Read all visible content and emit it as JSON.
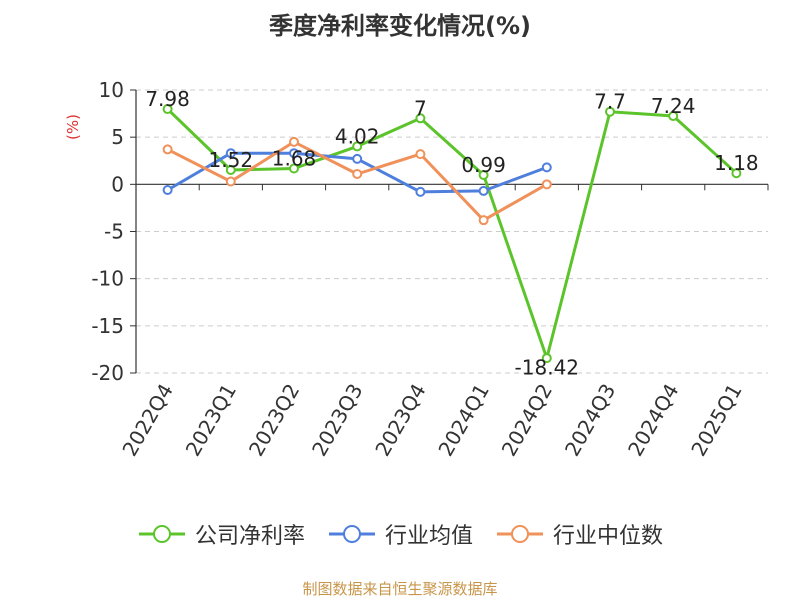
{
  "chart_data": {
    "type": "line",
    "title": "季度净利率变化情况(%)",
    "ylabel": "(%)",
    "xlabel": "",
    "categories": [
      "2022Q4",
      "2023Q1",
      "2023Q2",
      "2023Q3",
      "2023Q4",
      "2024Q1",
      "2024Q2",
      "2024Q3",
      "2024Q4",
      "2025Q1"
    ],
    "ylim": [
      -20,
      10
    ],
    "yticks": [
      10,
      5,
      0,
      -5,
      -10,
      -15,
      -20
    ],
    "grid": true,
    "legend_position": "bottom",
    "series": [
      {
        "name": "公司净利率",
        "color": "#5cc42b",
        "values": [
          7.98,
          1.52,
          1.68,
          4.02,
          7,
          0.99,
          -18.42,
          7.7,
          7.24,
          1.18
        ],
        "labels": [
          "7.98",
          "1.52",
          "1.68",
          "4.02",
          "7",
          "0.99",
          "-18.42",
          "7.7",
          "7.24",
          "1.18"
        ]
      },
      {
        "name": "行业均值",
        "color": "#4f7fdc",
        "values": [
          -0.6,
          3.3,
          3.3,
          2.7,
          -0.8,
          -0.7,
          1.8,
          null,
          null,
          null
        ]
      },
      {
        "name": "行业中位数",
        "color": "#f0915a",
        "values": [
          3.7,
          0.3,
          4.5,
          1.1,
          3.2,
          -3.8,
          0.0,
          null,
          null,
          null
        ]
      }
    ]
  },
  "footer": "制图数据来自恒生聚源数据库"
}
